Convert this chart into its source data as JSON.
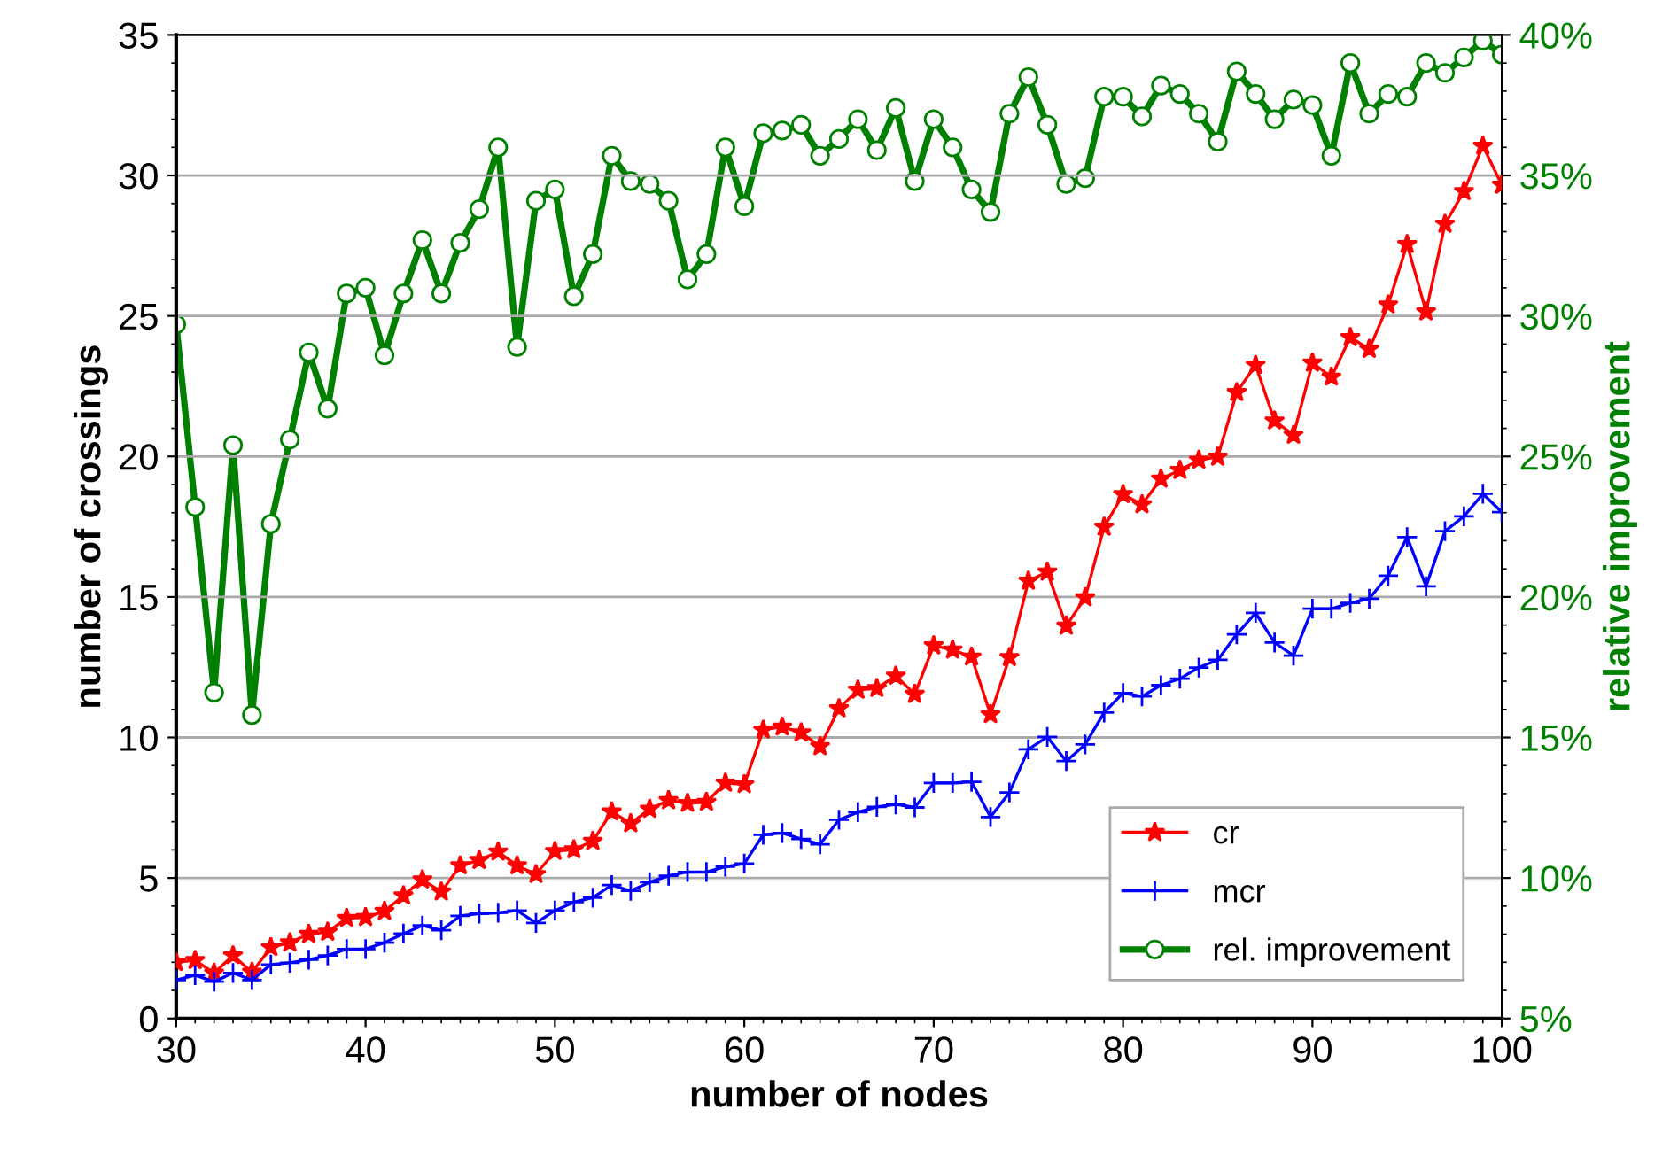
{
  "chart_data": {
    "type": "line",
    "xlabel": "number of nodes",
    "ylabel": "number of crossings",
    "y2label": "relative improvement",
    "x": [
      30,
      31,
      32,
      33,
      34,
      35,
      36,
      37,
      38,
      39,
      40,
      41,
      42,
      43,
      44,
      45,
      46,
      47,
      48,
      49,
      50,
      51,
      52,
      53,
      54,
      55,
      56,
      57,
      58,
      59,
      60,
      61,
      62,
      63,
      64,
      65,
      66,
      67,
      68,
      69,
      70,
      71,
      72,
      73,
      74,
      75,
      76,
      77,
      78,
      79,
      80,
      81,
      82,
      83,
      84,
      85,
      86,
      87,
      88,
      89,
      90,
      91,
      92,
      93,
      94,
      95,
      96,
      97,
      98,
      99,
      100
    ],
    "xlim": [
      30,
      100
    ],
    "xticks": [
      30,
      40,
      50,
      60,
      70,
      80,
      90,
      100
    ],
    "ylim": [
      0,
      35
    ],
    "yticks": [
      0,
      5,
      10,
      15,
      20,
      25,
      30,
      35
    ],
    "y2lim": [
      5,
      40
    ],
    "y2ticks": [
      {
        "value": 5,
        "label": "5%"
      },
      {
        "value": 10,
        "label": "10%"
      },
      {
        "value": 15,
        "label": "15%"
      },
      {
        "value": 20,
        "label": "20%"
      },
      {
        "value": 25,
        "label": "25%"
      },
      {
        "value": 30,
        "label": "30%"
      },
      {
        "value": 35,
        "label": "35%"
      },
      {
        "value": 40,
        "label": "40%"
      }
    ],
    "grid": "y",
    "legend": "bottom right",
    "series": [
      {
        "name": "cr",
        "color": "#ff0000",
        "marker": "star",
        "values": [
          2.0,
          2.07,
          1.62,
          2.24,
          1.65,
          2.53,
          2.7,
          3.0,
          3.08,
          3.57,
          3.6,
          3.82,
          4.37,
          4.94,
          4.51,
          5.44,
          5.63,
          5.93,
          5.44,
          5.13,
          5.95,
          6.01,
          6.31,
          7.36,
          6.94,
          7.45,
          7.76,
          7.66,
          7.7,
          8.38,
          8.33,
          10.27,
          10.38,
          10.17,
          9.68,
          11.03,
          11.69,
          11.75,
          12.19,
          11.54,
          13.27,
          13.12,
          12.87,
          10.82,
          12.85,
          15.57,
          15.89,
          13.97,
          14.98,
          17.49,
          18.65,
          18.29,
          19.2,
          19.51,
          19.87,
          19.98,
          22.28,
          23.25,
          21.27,
          20.76,
          23.33,
          22.83,
          24.24,
          23.82,
          25.4,
          27.55,
          25.15,
          28.27,
          29.43,
          31.05,
          29.66
        ]
      },
      {
        "name": "mcr",
        "color": "#0000ff",
        "marker": "cross",
        "values": [
          1.37,
          1.54,
          1.31,
          1.62,
          1.37,
          1.92,
          1.98,
          2.09,
          2.24,
          2.47,
          2.47,
          2.7,
          3.02,
          3.31,
          3.14,
          3.65,
          3.73,
          3.76,
          3.84,
          3.4,
          3.84,
          4.14,
          4.3,
          4.75,
          4.54,
          4.85,
          5.08,
          5.21,
          5.21,
          5.4,
          5.51,
          6.54,
          6.6,
          6.39,
          6.2,
          7.07,
          7.34,
          7.53,
          7.62,
          7.51,
          8.38,
          8.38,
          8.42,
          7.17,
          8.04,
          9.58,
          10.02,
          9.16,
          9.75,
          10.89,
          11.58,
          11.46,
          11.86,
          12.09,
          12.49,
          12.76,
          13.67,
          14.43,
          13.38,
          12.91,
          14.58,
          14.58,
          14.79,
          14.94,
          15.76,
          17.13,
          15.38,
          17.34,
          17.87,
          18.67,
          18.02
        ]
      },
      {
        "name": "rel. improvement",
        "color": "#008000",
        "marker": "circle",
        "axis": "y2",
        "values": [
          29.7,
          23.2,
          16.6,
          25.4,
          15.8,
          22.6,
          25.6,
          28.7,
          26.7,
          30.8,
          31.0,
          28.6,
          30.8,
          32.7,
          30.8,
          32.6,
          33.8,
          36.0,
          28.9,
          34.1,
          34.5,
          30.7,
          32.2,
          35.7,
          34.8,
          34.7,
          34.1,
          31.3,
          32.2,
          36.0,
          33.9,
          36.5,
          36.6,
          36.8,
          35.7,
          36.3,
          37.0,
          35.9,
          37.4,
          34.8,
          37.0,
          36.0,
          34.5,
          33.7,
          37.2,
          38.5,
          36.8,
          34.7,
          34.9,
          37.8,
          37.8,
          37.1,
          38.2,
          37.9,
          37.2,
          36.2,
          38.7,
          37.9,
          37.0,
          37.7,
          37.5,
          35.7,
          39.0,
          37.2,
          37.9,
          37.8,
          39.0,
          38.65,
          39.2,
          39.8,
          39.3
        ]
      }
    ]
  }
}
